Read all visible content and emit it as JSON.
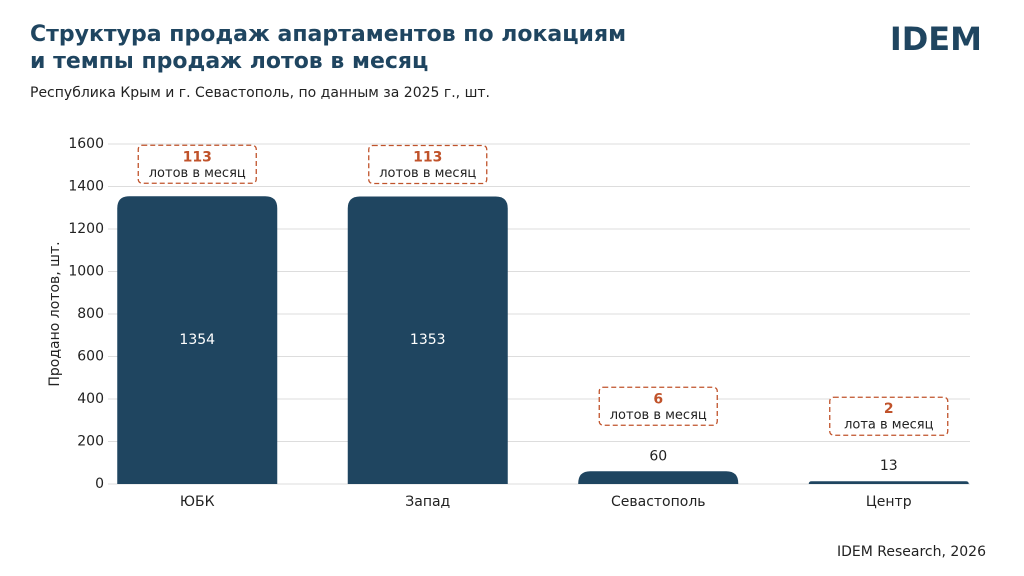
{
  "chart_data": {
    "type": "bar",
    "title": [
      "Структура продаж апартаментов по локациям",
      "и темпы продаж лотов в месяц"
    ],
    "subtitle": "Республика Крым и г. Севастополь, по данным за 2025 г., шт.",
    "logo": "IDEM",
    "y_label": "Продано лотов, шт.",
    "source": "IDEM Research, 2026",
    "categories": [
      "ЮБК",
      "Запад",
      "Севастополь",
      "Центр"
    ],
    "values": [
      1354,
      1353,
      60,
      13
    ],
    "color": "#1f4560",
    "annotations": [
      {
        "value": 113,
        "label": "лотов в месяц"
      },
      {
        "value": 113,
        "label": "лотов в месяц"
      },
      {
        "value": 6,
        "label": "лотов в месяц"
      },
      {
        "value": 2,
        "label": "лота в месяц"
      }
    ],
    "annotation_color": "#c0532b",
    "ylim": [
      0,
      1600
    ],
    "yticks": [
      0,
      200,
      400,
      600,
      800,
      1000,
      1200,
      1400,
      1600
    ],
    "grid": true
  }
}
